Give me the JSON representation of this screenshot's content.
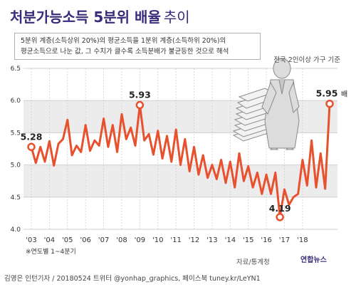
{
  "header": {
    "title": "처분가능소득 5분위 배율",
    "title_suffix": "추이"
  },
  "description": {
    "line1": "5분위 계층(소득상위 20%)의 평균소득을 1분위 계층(소득하위 20%)의",
    "line2": "평균소득으로 나눈 값, 그 수치가 클수록 소득분배가 불균등한 것으로 해석"
  },
  "basis_note": "전국 2인이상 가구 기준",
  "footnote": "※연도별 1~4분기",
  "source": "자료/통계청",
  "logo": "연합뉴스",
  "footer": "김영은 인턴기자 / 20180524  트위터 @yonhap_graphics, 페이스북 tuney.kr/LeYN1",
  "colors": {
    "line": "#e8512d",
    "band": "#ececec",
    "grid": "#cfcfcf",
    "text": "#333333"
  },
  "chart_data": {
    "type": "line",
    "title": "처분가능소득 5분위 배율 추이",
    "xlabel": "",
    "ylabel": "",
    "ylim": [
      4.0,
      6.5
    ],
    "yticks": [
      "4.0",
      "4.5",
      "5.0",
      "5.5",
      "6.0",
      "6.5"
    ],
    "xticks": [
      "'03",
      "'04",
      "'05",
      "'06",
      "'07",
      "'08",
      "'09",
      "'10",
      "'11",
      "'12",
      "'13",
      "'14",
      "'15",
      "'16",
      "'17",
      "'18"
    ],
    "grid": true,
    "series": [
      {
        "values": [
          5.28,
          5.03,
          5.28,
          5.05,
          5.37,
          4.99,
          5.33,
          5.4,
          5.7,
          5.15,
          5.3,
          5.2,
          5.62,
          5.22,
          5.38,
          5.3,
          5.72,
          5.28,
          5.62,
          5.2,
          5.79,
          5.4,
          5.58,
          5.3,
          5.93,
          5.38,
          5.48,
          5.16,
          5.53,
          5.1,
          5.45,
          5.05,
          5.55,
          5.0,
          5.4,
          4.9,
          5.28,
          4.85,
          5.15,
          4.8,
          5.0,
          4.78,
          5.08,
          4.72,
          5.05,
          4.65,
          5.18,
          4.75,
          4.98,
          4.65,
          4.88,
          4.55,
          4.85,
          4.55,
          4.88,
          4.19,
          4.62,
          4.38,
          4.5,
          4.55,
          5.08,
          4.68,
          5.38,
          4.65,
          5.18,
          4.63,
          5.95
        ]
      }
    ],
    "annotations": [
      {
        "label": "5.28",
        "index": 0
      },
      {
        "label": "5.93",
        "index": 24
      },
      {
        "label": "4.19",
        "index": 55
      },
      {
        "label": "5.95",
        "index": 66,
        "unit": "배"
      }
    ]
  }
}
